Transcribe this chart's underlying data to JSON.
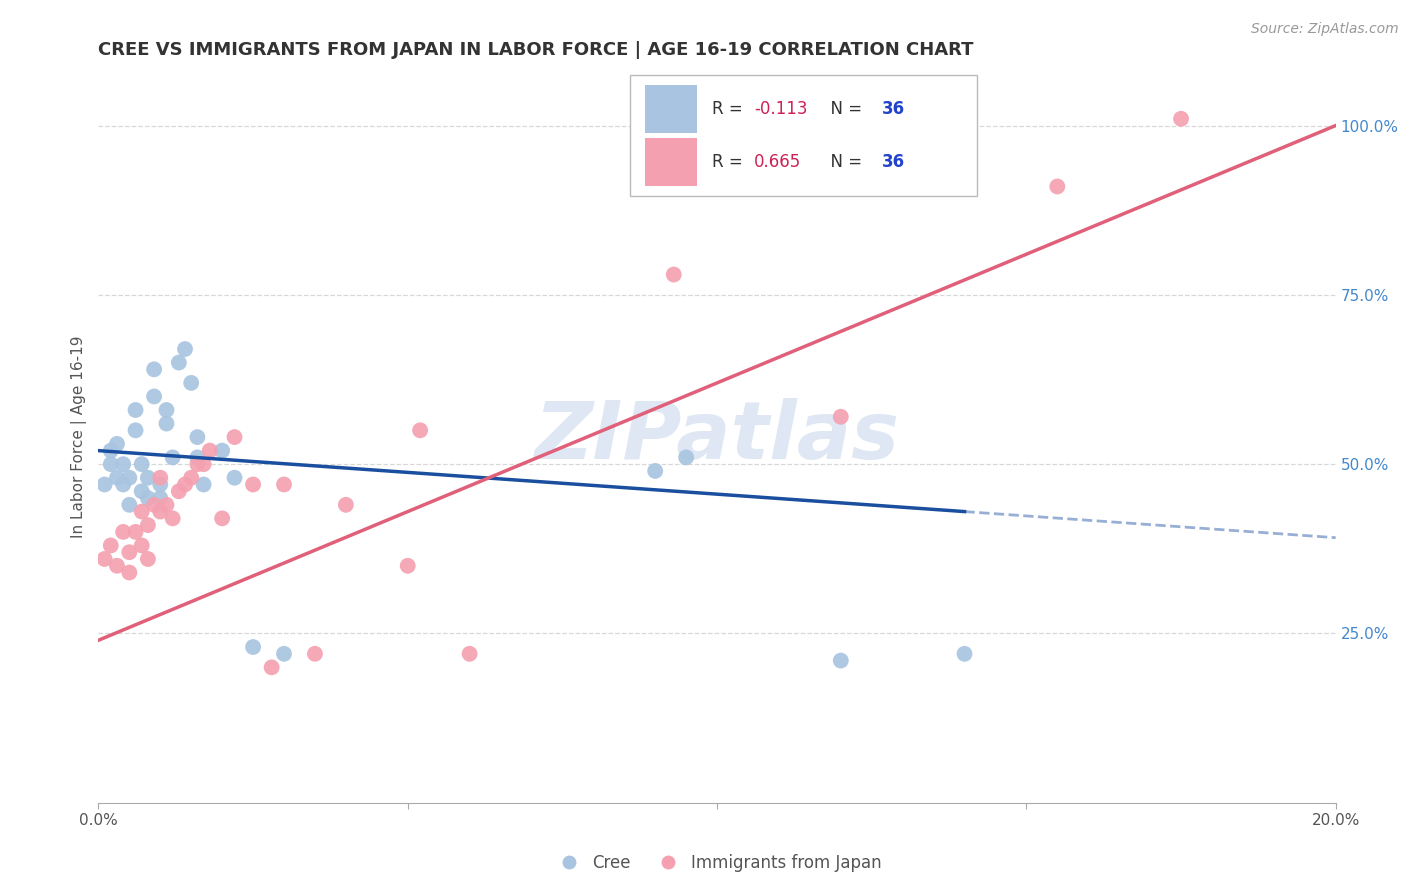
{
  "title": "CREE VS IMMIGRANTS FROM JAPAN IN LABOR FORCE | AGE 16-19 CORRELATION CHART",
  "source": "Source: ZipAtlas.com",
  "ylabel": "In Labor Force | Age 16-19",
  "x_min": 0.0,
  "x_max": 0.2,
  "y_min": 0.0,
  "y_max": 1.08,
  "y_tick_vals_right": [
    0.25,
    0.5,
    0.75,
    1.0
  ],
  "y_tick_labels_right": [
    "25.0%",
    "50.0%",
    "75.0%",
    "100.0%"
  ],
  "x_tick_positions": [
    0.0,
    0.05,
    0.1,
    0.15,
    0.2
  ],
  "x_tick_labels": [
    "0.0%",
    "",
    "",
    "",
    "20.0%"
  ],
  "cree_R": "-0.113",
  "cree_N": "36",
  "japan_R": "0.665",
  "japan_N": "36",
  "cree_color": "#a8c4e0",
  "japan_color": "#f4a0b0",
  "cree_line_color": "#1a4fa0",
  "japan_line_color": "#e0607a",
  "legend_R_color": "#cc2255",
  "legend_N_color": "#2244cc",
  "watermark_text": "ZIPatlas",
  "watermark_color": "#c8d8ec",
  "background_color": "#ffffff",
  "grid_color": "#d8d8d8",
  "cree_points_x": [
    0.001,
    0.002,
    0.002,
    0.003,
    0.003,
    0.004,
    0.004,
    0.005,
    0.005,
    0.006,
    0.006,
    0.007,
    0.007,
    0.008,
    0.008,
    0.009,
    0.009,
    0.01,
    0.01,
    0.011,
    0.011,
    0.012,
    0.013,
    0.014,
    0.015,
    0.016,
    0.016,
    0.017,
    0.02,
    0.022,
    0.025,
    0.03,
    0.09,
    0.095,
    0.12,
    0.14
  ],
  "cree_points_y": [
    0.47,
    0.5,
    0.52,
    0.48,
    0.53,
    0.47,
    0.5,
    0.44,
    0.48,
    0.55,
    0.58,
    0.5,
    0.46,
    0.45,
    0.48,
    0.6,
    0.64,
    0.45,
    0.47,
    0.56,
    0.58,
    0.51,
    0.65,
    0.67,
    0.62,
    0.54,
    0.51,
    0.47,
    0.52,
    0.48,
    0.23,
    0.22,
    0.49,
    0.51,
    0.21,
    0.22
  ],
  "japan_points_x": [
    0.001,
    0.002,
    0.003,
    0.004,
    0.005,
    0.005,
    0.006,
    0.007,
    0.007,
    0.008,
    0.008,
    0.009,
    0.01,
    0.01,
    0.011,
    0.012,
    0.013,
    0.014,
    0.015,
    0.016,
    0.017,
    0.018,
    0.02,
    0.022,
    0.025,
    0.028,
    0.03,
    0.035,
    0.04,
    0.05,
    0.052,
    0.06,
    0.093,
    0.12,
    0.155,
    0.175
  ],
  "japan_points_y": [
    0.36,
    0.38,
    0.35,
    0.4,
    0.34,
    0.37,
    0.4,
    0.38,
    0.43,
    0.36,
    0.41,
    0.44,
    0.48,
    0.43,
    0.44,
    0.42,
    0.46,
    0.47,
    0.48,
    0.5,
    0.5,
    0.52,
    0.42,
    0.54,
    0.47,
    0.2,
    0.47,
    0.22,
    0.44,
    0.35,
    0.55,
    0.22,
    0.78,
    0.57,
    0.91,
    1.01
  ]
}
